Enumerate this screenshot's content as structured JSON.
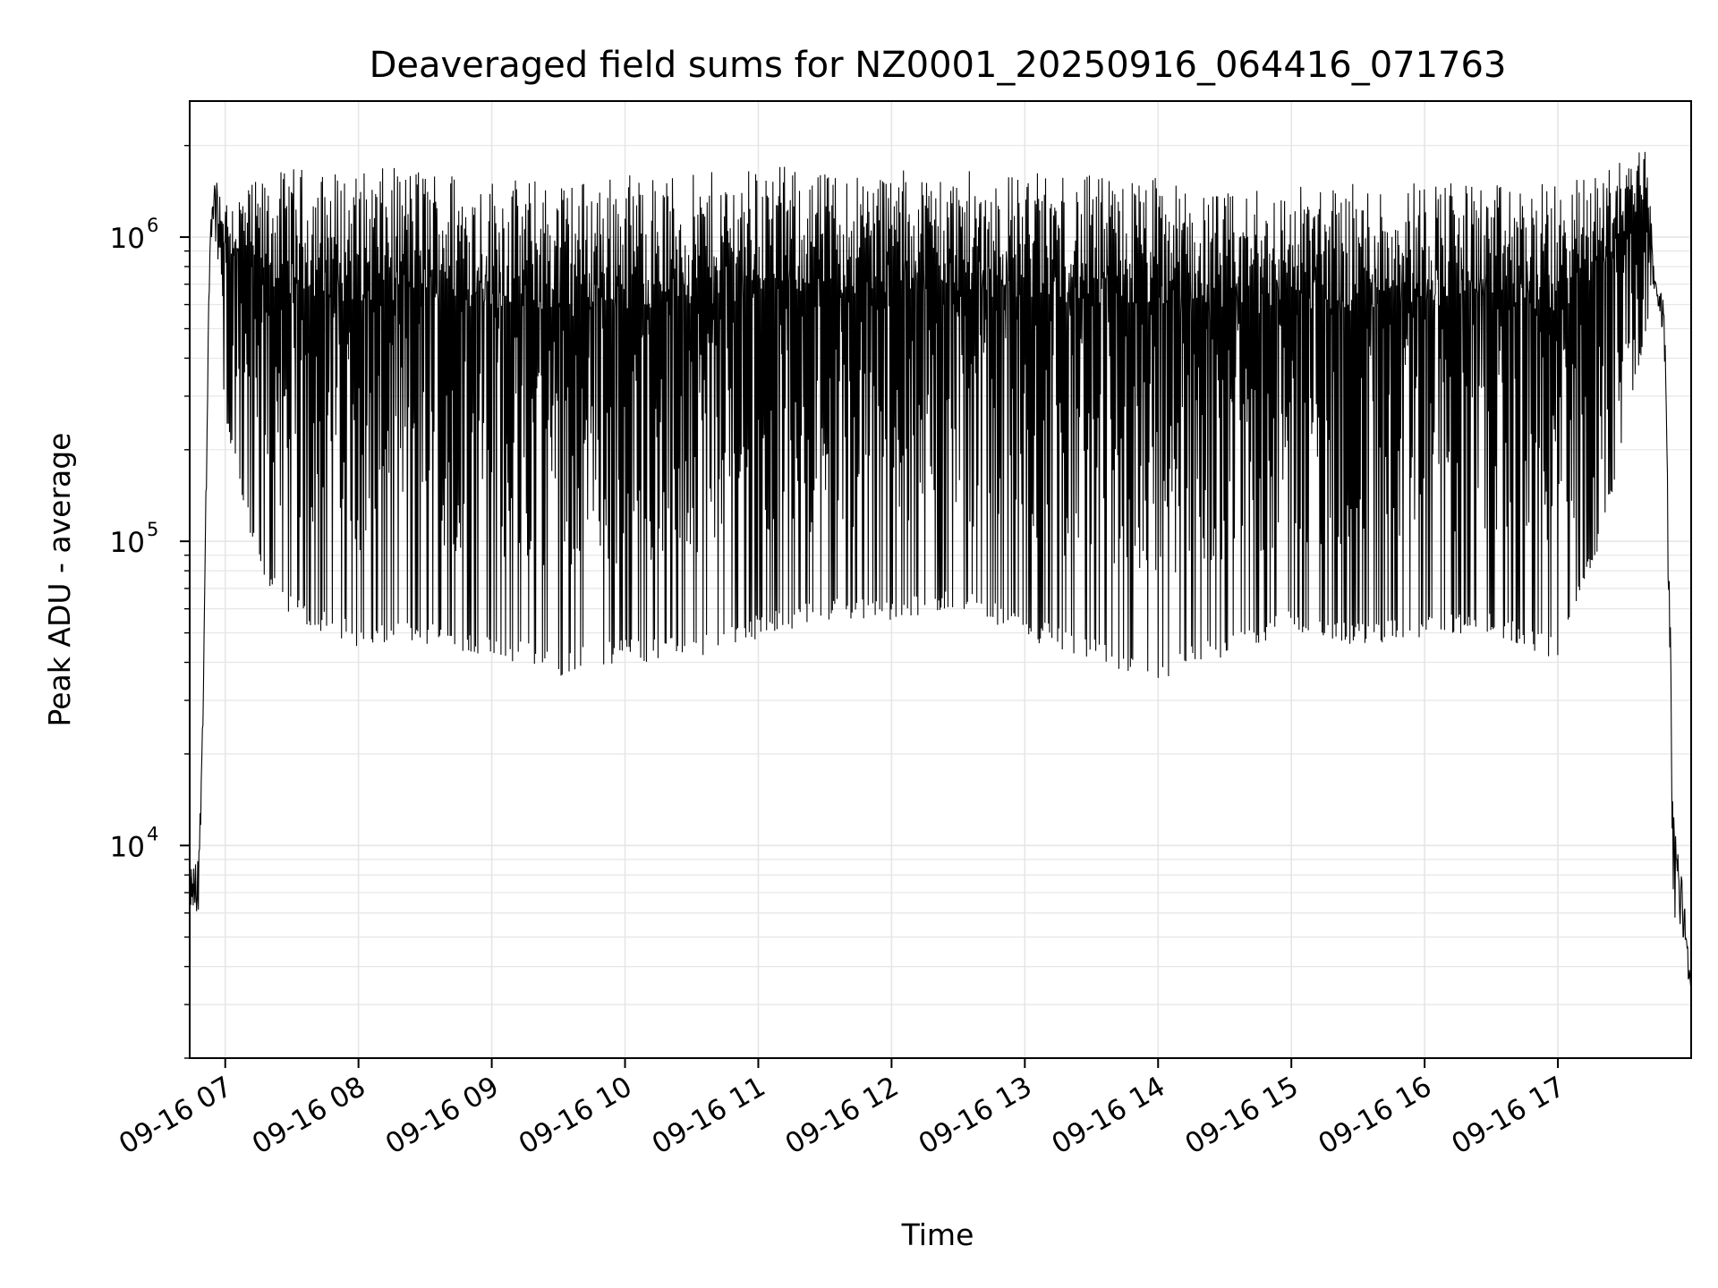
{
  "chart_data": {
    "type": "line",
    "title": "Deaveraged field sums for NZ0001_20250916_064416_071763",
    "xlabel": "Time",
    "ylabel": "Peak ADU - average",
    "yscale": "log",
    "xlim": [
      "2025-09-16 06:44",
      "2025-09-16 18:00"
    ],
    "ylim": [
      2000,
      2800000
    ],
    "x_ticks": [
      "09-16 07",
      "09-16 08",
      "09-16 09",
      "09-16 10",
      "09-16 11",
      "09-16 12",
      "09-16 13",
      "09-16 14",
      "09-16 15",
      "09-16 16",
      "09-16 17"
    ],
    "y_ticks": [
      {
        "base": "10",
        "exp": "4"
      },
      {
        "base": "10",
        "exp": "5"
      },
      {
        "base": "10",
        "exp": "6"
      }
    ],
    "grid": true,
    "line_color": "#000000",
    "grid_color": "#e6e6e6",
    "series": [
      {
        "values_description_only_in_script": false,
        "upper_envelope": [
          {
            "t": "06:44",
            "v": 9000
          },
          {
            "t": "06:48",
            "v": 9000
          },
          {
            "t": "06:50",
            "v": 38000
          },
          {
            "t": "06:53",
            "v": 1000000
          },
          {
            "t": "06:55",
            "v": 1550000
          },
          {
            "t": "07:00",
            "v": 1400000
          },
          {
            "t": "07:30",
            "v": 1700000
          },
          {
            "t": "08:00",
            "v": 1650000
          },
          {
            "t": "08:30",
            "v": 1750000
          },
          {
            "t": "09:00",
            "v": 1600000
          },
          {
            "t": "09:30",
            "v": 1550000
          },
          {
            "t": "10:00",
            "v": 1650000
          },
          {
            "t": "10:30",
            "v": 1600000
          },
          {
            "t": "11:00",
            "v": 1750000
          },
          {
            "t": "11:30",
            "v": 1650000
          },
          {
            "t": "12:00",
            "v": 1700000
          },
          {
            "t": "12:30",
            "v": 1650000
          },
          {
            "t": "13:00",
            "v": 1650000
          },
          {
            "t": "13:30",
            "v": 1600000
          },
          {
            "t": "14:00",
            "v": 1600000
          },
          {
            "t": "14:30",
            "v": 1400000
          },
          {
            "t": "15:00",
            "v": 1500000
          },
          {
            "t": "15:30",
            "v": 1500000
          },
          {
            "t": "16:00",
            "v": 1600000
          },
          {
            "t": "16:30",
            "v": 1500000
          },
          {
            "t": "17:00",
            "v": 1500000
          },
          {
            "t": "17:20",
            "v": 1700000
          },
          {
            "t": "17:40",
            "v": 2000000
          },
          {
            "t": "17:44",
            "v": 750000
          },
          {
            "t": "17:48",
            "v": 600000
          },
          {
            "t": "17:52",
            "v": 15000
          },
          {
            "t": "18:00",
            "v": 4000
          }
        ],
        "lower_envelope": [
          {
            "t": "06:44",
            "v": 6000
          },
          {
            "t": "06:48",
            "v": 5500
          },
          {
            "t": "06:50",
            "v": 25000
          },
          {
            "t": "06:53",
            "v": 800000
          },
          {
            "t": "06:55",
            "v": 1200000
          },
          {
            "t": "07:00",
            "v": 250000
          },
          {
            "t": "07:15",
            "v": 80000
          },
          {
            "t": "07:30",
            "v": 55000
          },
          {
            "t": "08:00",
            "v": 45000
          },
          {
            "t": "08:30",
            "v": 45000
          },
          {
            "t": "09:00",
            "v": 42000
          },
          {
            "t": "09:30",
            "v": 36000
          },
          {
            "t": "10:00",
            "v": 40000
          },
          {
            "t": "10:30",
            "v": 40000
          },
          {
            "t": "11:00",
            "v": 48000
          },
          {
            "t": "11:30",
            "v": 55000
          },
          {
            "t": "12:00",
            "v": 55000
          },
          {
            "t": "12:30",
            "v": 60000
          },
          {
            "t": "13:00",
            "v": 48000
          },
          {
            "t": "13:30",
            "v": 40000
          },
          {
            "t": "14:00",
            "v": 34000
          },
          {
            "t": "14:30",
            "v": 42000
          },
          {
            "t": "15:00",
            "v": 50000
          },
          {
            "t": "15:30",
            "v": 45000
          },
          {
            "t": "16:00",
            "v": 48000
          },
          {
            "t": "16:30",
            "v": 50000
          },
          {
            "t": "17:00",
            "v": 40000
          },
          {
            "t": "17:20",
            "v": 100000
          },
          {
            "t": "17:40",
            "v": 500000
          },
          {
            "t": "17:44",
            "v": 700000
          },
          {
            "t": "17:48",
            "v": 400000
          },
          {
            "t": "17:52",
            "v": 6000
          },
          {
            "t": "18:00",
            "v": 3300
          }
        ]
      }
    ]
  }
}
